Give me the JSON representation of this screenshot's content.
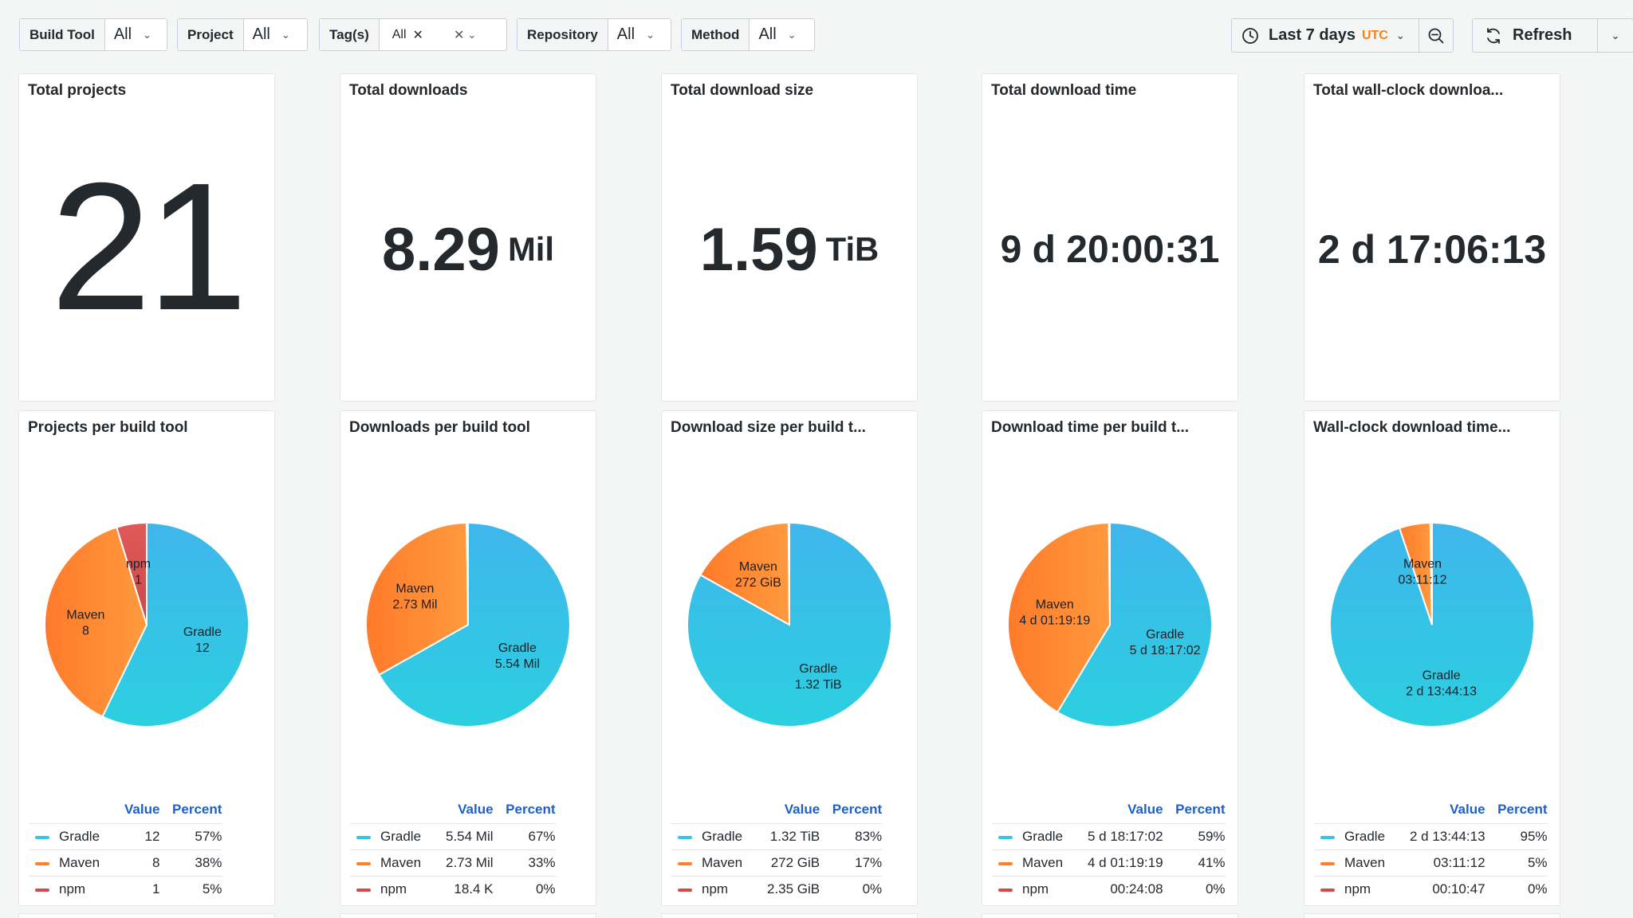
{
  "variables": [
    {
      "label": "Build Tool",
      "value": "All"
    },
    {
      "label": "Project",
      "value": "All"
    },
    {
      "label": "Tag(s)",
      "value": "All"
    },
    {
      "label": "Repository",
      "value": "All"
    },
    {
      "label": "Method",
      "value": "All"
    }
  ],
  "time_range": {
    "label": "Last 7 days",
    "timezone": "UTC"
  },
  "refresh_label": "Refresh",
  "stats": [
    {
      "title": "Total projects",
      "value": "21",
      "unit": ""
    },
    {
      "title": "Total downloads",
      "value": "8.29",
      "unit": "Mil"
    },
    {
      "title": "Total download size",
      "value": "1.59",
      "unit": "TiB"
    },
    {
      "title": "Total download time",
      "value": "9 d 20:00:31",
      "unit": ""
    },
    {
      "title": "Total wall-clock downloa...",
      "value": "2 d 17:06:13",
      "unit": ""
    }
  ],
  "legend_headers": {
    "value": "Value",
    "percent": "Percent"
  },
  "colors": {
    "Gradle": "#33c7e3",
    "Maven": "#ff7f2a",
    "npm": "#d44a4a"
  },
  "pies": [
    {
      "title": "Projects per build tool",
      "chart_data": {
        "type": "pie",
        "slices": [
          {
            "name": "Gradle",
            "value": 12,
            "display": "12",
            "percent": "57%"
          },
          {
            "name": "Maven",
            "value": 8,
            "display": "8",
            "percent": "38%"
          },
          {
            "name": "npm",
            "value": 1,
            "display": "1",
            "percent": "5%"
          }
        ]
      }
    },
    {
      "title": "Downloads per build tool",
      "chart_data": {
        "type": "pie",
        "slices": [
          {
            "name": "Gradle",
            "value": 5.54,
            "display": "5.54 Mil",
            "percent": "67%"
          },
          {
            "name": "Maven",
            "value": 2.73,
            "display": "2.73 Mil",
            "percent": "33%"
          },
          {
            "name": "npm",
            "value": 0.0184,
            "display": "18.4 K",
            "percent": "0%"
          }
        ]
      }
    },
    {
      "title": "Download size per build t...",
      "chart_data": {
        "type": "pie",
        "slices": [
          {
            "name": "Gradle",
            "value": 1351.7,
            "display": "1.32 TiB",
            "percent": "83%"
          },
          {
            "name": "Maven",
            "value": 272,
            "display": "272 GiB",
            "percent": "17%"
          },
          {
            "name": "npm",
            "value": 2.35,
            "display": "2.35 GiB",
            "percent": "0%"
          }
        ]
      }
    },
    {
      "title": "Download time per build t...",
      "chart_data": {
        "type": "pie",
        "slices": [
          {
            "name": "Gradle",
            "value": 497822,
            "display": "5 d 18:17:02",
            "percent": "59%"
          },
          {
            "name": "Maven",
            "value": 350359,
            "display": "4 d 01:19:19",
            "percent": "41%"
          },
          {
            "name": "npm",
            "value": 1448,
            "display": "00:24:08",
            "percent": "0%"
          }
        ]
      }
    },
    {
      "title": "Wall-clock download time...",
      "chart_data": {
        "type": "pie",
        "slices": [
          {
            "name": "Gradle",
            "value": 222253,
            "display": "2 d 13:44:13",
            "percent": "95%"
          },
          {
            "name": "Maven",
            "value": 11472,
            "display": "03:11:12",
            "percent": "5%"
          },
          {
            "name": "npm",
            "value": 647,
            "display": "00:10:47",
            "percent": "0%"
          }
        ]
      }
    }
  ]
}
